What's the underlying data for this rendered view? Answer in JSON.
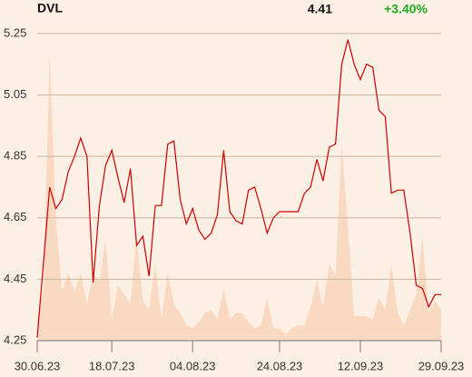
{
  "chart_data": {
    "type": "line",
    "title": "DVL",
    "last_price": "4.41",
    "change": "+3.40%",
    "categories": [
      "30.06.23",
      null,
      null,
      null,
      null,
      null,
      null,
      null,
      null,
      null,
      null,
      null,
      "18.07.23",
      null,
      null,
      null,
      null,
      null,
      null,
      null,
      null,
      null,
      null,
      null,
      null,
      "04.08.23",
      null,
      null,
      null,
      null,
      null,
      null,
      null,
      null,
      null,
      null,
      null,
      null,
      null,
      "24.08.23",
      null,
      null,
      null,
      null,
      null,
      null,
      null,
      null,
      null,
      null,
      null,
      null,
      "12.09.23",
      null,
      null,
      null,
      null,
      null,
      null,
      null,
      null,
      null,
      null,
      null,
      null,
      "29.09.23"
    ],
    "series": [
      {
        "color": "#cc0000",
        "values": [
          4.26,
          4.5,
          4.75,
          4.68,
          4.71,
          4.8,
          4.85,
          4.91,
          4.85,
          4.44,
          4.69,
          4.82,
          4.87,
          4.78,
          4.7,
          4.81,
          4.56,
          4.59,
          4.46,
          4.69,
          4.69,
          4.89,
          4.9,
          4.71,
          4.63,
          4.68,
          4.61,
          4.58,
          4.6,
          4.66,
          4.87,
          4.67,
          4.64,
          4.63,
          4.74,
          4.75,
          4.68,
          4.6,
          4.65,
          4.67,
          4.67,
          4.67,
          4.67,
          4.73,
          4.75,
          4.84,
          4.77,
          4.88,
          4.89,
          5.15,
          5.23,
          5.15,
          5.1,
          5.15,
          5.14,
          5.0,
          4.98,
          4.73,
          4.74,
          4.74,
          4.6,
          4.43,
          4.42,
          4.36,
          4.4,
          4.4
        ]
      },
      {
        "color": "#fad9c2",
        "values": [
          4.32,
          4.41,
          5.19,
          4.65,
          4.41,
          4.47,
          4.41,
          4.47,
          4.37,
          4.47,
          4.44,
          4.58,
          4.32,
          4.43,
          4.4,
          4.37,
          4.59,
          4.38,
          4.35,
          4.5,
          4.32,
          4.47,
          4.37,
          4.34,
          4.3,
          4.29,
          4.31,
          4.34,
          4.35,
          4.32,
          4.42,
          4.32,
          4.34,
          4.34,
          4.31,
          4.29,
          4.3,
          4.39,
          4.29,
          4.29,
          4.27,
          4.29,
          4.3,
          4.3,
          4.36,
          4.45,
          4.36,
          4.5,
          4.46,
          4.89,
          4.62,
          4.33,
          4.33,
          4.33,
          4.32,
          4.39,
          4.35,
          4.5,
          4.34,
          4.3,
          4.35,
          4.4,
          4.59,
          4.34,
          4.38,
          4.35
        ]
      }
    ],
    "ylim": [
      4.25,
      5.3
    ],
    "yticks": [
      4.25,
      4.45,
      4.65,
      4.85,
      5.05,
      5.25
    ],
    "grid": true
  }
}
